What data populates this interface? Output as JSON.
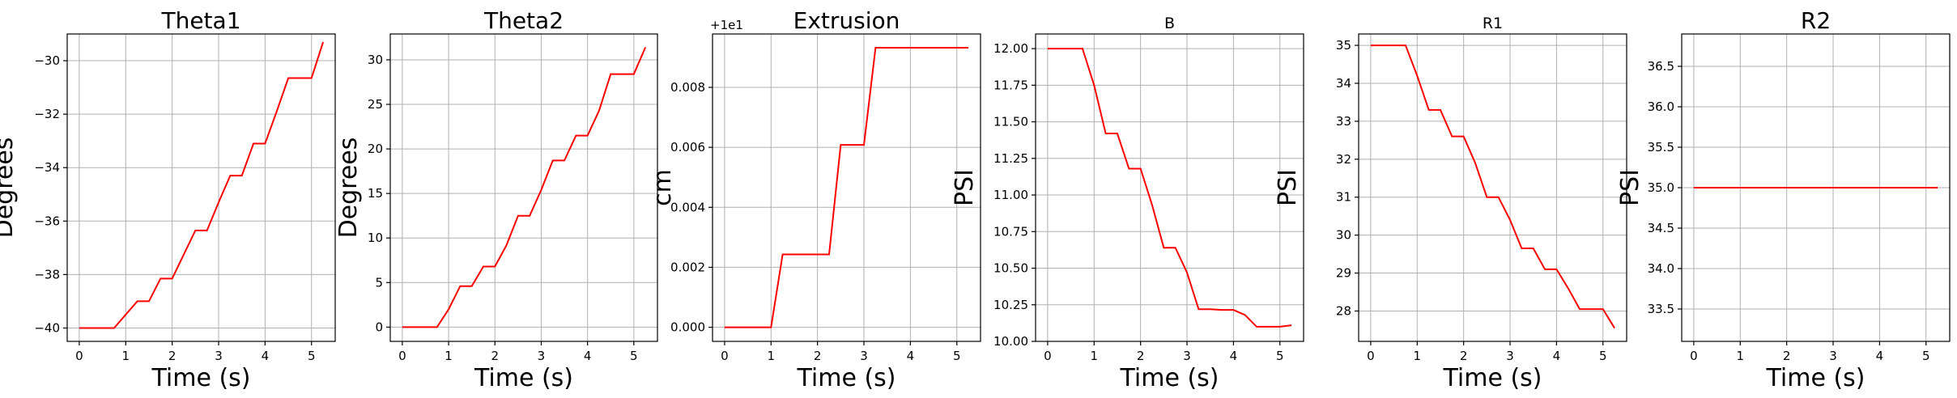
{
  "colors": {
    "line": "#ff0000",
    "grid": "#b0b0b0",
    "frame": "#000000"
  },
  "chart_data": [
    {
      "type": "line",
      "title": "Theta1",
      "xlabel": "Time (s)",
      "ylabel": "Degrees",
      "xlim": [
        -0.26,
        5.51
      ],
      "ylim": [
        -40.5,
        -29.0
      ],
      "xticks": [
        0,
        1,
        2,
        3,
        4,
        5
      ],
      "yticks": [
        -40,
        -38,
        -36,
        -34,
        -32,
        -30
      ],
      "ytick_labels": [
        "−40",
        "−38",
        "−36",
        "−34",
        "−32",
        "−30"
      ],
      "grid": true,
      "x": [
        0,
        0.75,
        1,
        1.25,
        1.5,
        1.75,
        2,
        2.25,
        2.5,
        2.75,
        3,
        3.25,
        3.5,
        3.75,
        4,
        4.25,
        4.5,
        4.75,
        5,
        5.25
      ],
      "y": [
        -40,
        -40,
        -39.5,
        -39.0,
        -39.0,
        -38.15,
        -38.15,
        -37.25,
        -36.35,
        -36.35,
        -35.3,
        -34.3,
        -34.3,
        -33.1,
        -33.1,
        -31.9,
        -30.65,
        -30.65,
        -30.65,
        -29.3
      ]
    },
    {
      "type": "line",
      "title": "Theta2",
      "xlabel": "Time (s)",
      "ylabel": "Degrees",
      "xlim": [
        -0.26,
        5.51
      ],
      "ylim": [
        -1.6,
        32.9
      ],
      "xticks": [
        0,
        1,
        2,
        3,
        4,
        5
      ],
      "yticks": [
        0,
        5,
        10,
        15,
        20,
        25,
        30
      ],
      "ytick_labels": [
        "0",
        "5",
        "10",
        "15",
        "20",
        "25",
        "30"
      ],
      "grid": true,
      "x": [
        0,
        0.75,
        1,
        1.25,
        1.5,
        1.75,
        2,
        2.25,
        2.5,
        2.75,
        3,
        3.25,
        3.5,
        3.75,
        4,
        4.25,
        4.5,
        4.75,
        5,
        5.25
      ],
      "y": [
        0,
        0,
        2.0,
        4.6,
        4.6,
        6.8,
        6.8,
        9.2,
        12.5,
        12.5,
        15.4,
        18.7,
        18.7,
        21.5,
        21.5,
        24.3,
        28.4,
        28.4,
        28.4,
        31.4
      ]
    },
    {
      "type": "line",
      "title": "Extrusion",
      "xlabel": "Time (s)",
      "ylabel": "cm",
      "offset_text": "+1e1",
      "xlim": [
        -0.26,
        5.51
      ],
      "ylim": [
        -0.00047,
        0.00978
      ],
      "xticks": [
        0,
        1,
        2,
        3,
        4,
        5
      ],
      "yticks": [
        0,
        0.002,
        0.004,
        0.006,
        0.008
      ],
      "ytick_labels": [
        "0.000",
        "0.002",
        "0.004",
        "0.006",
        "0.008"
      ],
      "grid": true,
      "x": [
        0,
        1,
        1.25,
        2.25,
        2.5,
        3,
        3.25,
        5.25
      ],
      "y": [
        0,
        0,
        0.00243,
        0.00243,
        0.00608,
        0.00608,
        0.00932,
        0.00932
      ]
    },
    {
      "type": "line",
      "title": "B",
      "xlabel": "Time (s)",
      "ylabel": "PSI",
      "xlim": [
        -0.26,
        5.51
      ],
      "ylim": [
        10.0,
        12.1
      ],
      "xticks": [
        0,
        1,
        2,
        3,
        4,
        5
      ],
      "yticks": [
        10.0,
        10.25,
        10.5,
        10.75,
        11.0,
        11.25,
        11.5,
        11.75,
        12.0
      ],
      "ytick_labels": [
        "10.00",
        "10.25",
        "10.50",
        "10.75",
        "11.00",
        "11.25",
        "11.50",
        "11.75",
        "12.00"
      ],
      "grid": true,
      "x": [
        0,
        0.75,
        1,
        1.25,
        1.5,
        1.75,
        2,
        2.25,
        2.5,
        2.75,
        3,
        3.25,
        3.5,
        3.75,
        4,
        4.25,
        4.5,
        4.75,
        5,
        5.25
      ],
      "y": [
        12.0,
        12.0,
        11.75,
        11.42,
        11.42,
        11.18,
        11.18,
        10.93,
        10.64,
        10.64,
        10.47,
        10.22,
        10.22,
        10.215,
        10.215,
        10.18,
        10.1,
        10.1,
        10.1,
        10.11
      ]
    },
    {
      "type": "line",
      "title": "R1",
      "xlabel": "Time (s)",
      "ylabel": "PSI",
      "xlim": [
        -0.26,
        5.51
      ],
      "ylim": [
        27.2,
        35.3
      ],
      "xticks": [
        0,
        1,
        2,
        3,
        4,
        5
      ],
      "yticks": [
        28,
        29,
        30,
        31,
        32,
        33,
        34,
        35
      ],
      "ytick_labels": [
        "28",
        "29",
        "30",
        "31",
        "32",
        "33",
        "34",
        "35"
      ],
      "grid": true,
      "x": [
        0,
        0.75,
        1,
        1.25,
        1.5,
        1.75,
        2,
        2.25,
        2.5,
        2.75,
        3,
        3.25,
        3.5,
        3.75,
        4,
        4.25,
        4.5,
        4.75,
        5,
        5.25
      ],
      "y": [
        35,
        35,
        34.2,
        33.3,
        33.3,
        32.6,
        32.6,
        31.9,
        31.0,
        31.0,
        30.4,
        29.65,
        29.65,
        29.1,
        29.1,
        28.6,
        28.05,
        28.05,
        28.05,
        27.55
      ]
    },
    {
      "type": "line",
      "title": "R2",
      "xlabel": "Time (s)",
      "ylabel": "PSI",
      "xlim": [
        -0.26,
        5.51
      ],
      "ylim": [
        33.1,
        36.9
      ],
      "xticks": [
        0,
        1,
        2,
        3,
        4,
        5
      ],
      "yticks": [
        33.5,
        34.0,
        34.5,
        35.0,
        35.5,
        36.0,
        36.5
      ],
      "ytick_labels": [
        "33.5",
        "34.0",
        "34.5",
        "35.0",
        "35.5",
        "36.0",
        "36.5"
      ],
      "grid": true,
      "x": [
        0,
        5.25
      ],
      "y": [
        35.0,
        35.0
      ]
    }
  ]
}
